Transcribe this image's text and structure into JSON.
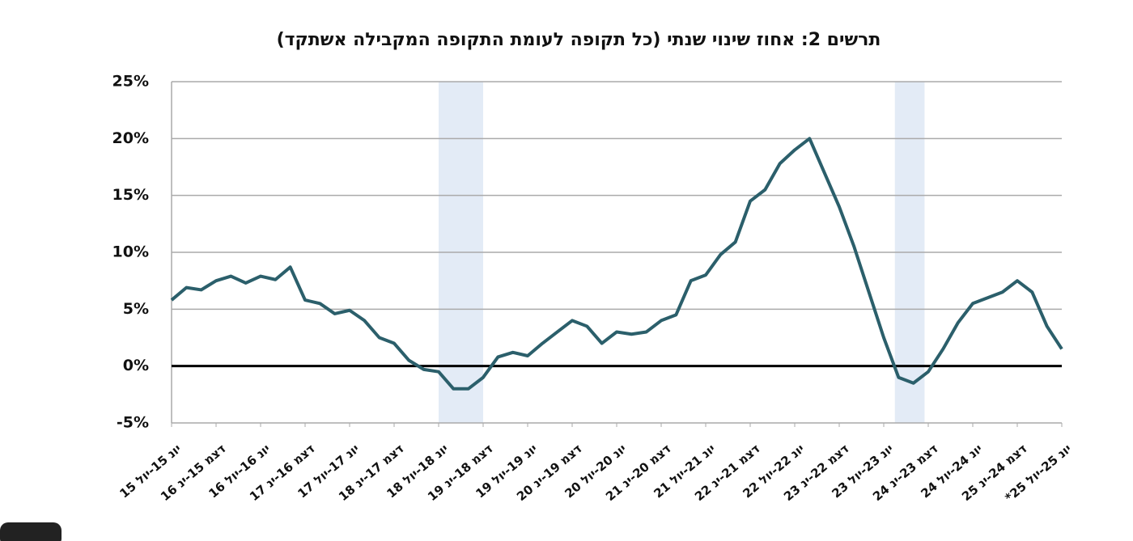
{
  "chart_data": {
    "type": "line",
    "title": "תרשים 2: אחוז שינוי שנתי (כל תקופה לעומת התקופה המקבילה אשתקד)",
    "x": [
      0,
      2,
      4,
      6,
      8,
      10,
      12,
      14,
      16,
      18,
      20,
      22,
      24,
      26,
      28,
      30,
      32,
      34,
      36,
      38,
      40,
      42,
      44,
      46,
      48,
      50,
      52,
      54,
      56,
      58,
      60,
      62,
      64,
      66,
      68,
      70,
      72,
      74,
      76,
      78,
      80,
      82,
      84,
      86,
      88,
      90,
      92,
      94,
      96,
      98,
      100,
      102,
      104,
      106,
      108,
      110,
      112,
      114,
      116,
      118,
      120
    ],
    "series": [
      {
        "name": "שינוי שנתי",
        "color": "#2b5f6b",
        "values": [
          5.8,
          6.9,
          6.7,
          7.5,
          7.9,
          7.3,
          7.9,
          7.6,
          8.7,
          5.8,
          5.5,
          4.6,
          4.9,
          4.0,
          2.5,
          2.0,
          0.5,
          -0.3,
          -0.5,
          -2.0,
          -2.0,
          -1.0,
          0.8,
          1.2,
          0.9,
          2.0,
          3.0,
          4.0,
          3.5,
          2.0,
          3.0,
          2.8,
          3.0,
          4.0,
          4.5,
          7.5,
          8.0,
          9.8,
          10.9,
          14.5,
          15.5,
          17.8,
          19.0,
          20.0,
          17.0,
          14.0,
          10.5,
          6.5,
          2.5,
          -1.0,
          -1.5,
          -0.5,
          1.5,
          3.8,
          5.5,
          6.0,
          6.5,
          7.5,
          6.5,
          3.5,
          1.5
        ]
      }
    ],
    "bands": [
      [
        36,
        42
      ],
      [
        97.5,
        101.5
      ]
    ],
    "band_color": "#e3ebf6",
    "xlim": [
      0,
      120
    ],
    "xticks": [
      {
        "value": 0,
        "label": "יונ 15-יול 15"
      },
      {
        "value": 6,
        "label": "דצמ 15-ינ 16"
      },
      {
        "value": 12,
        "label": "יונ 16-יול 16"
      },
      {
        "value": 18,
        "label": "דצמ 16-ינ 17"
      },
      {
        "value": 24,
        "label": "יונ 17-יול 17"
      },
      {
        "value": 30,
        "label": "דצמ 17-ינ 18"
      },
      {
        "value": 36,
        "label": "יונ 18-יול 18"
      },
      {
        "value": 42,
        "label": "דצמ 18-ינ 19"
      },
      {
        "value": 48,
        "label": "יונ 19-יול 19"
      },
      {
        "value": 54,
        "label": "דצמ 19-ינ 20"
      },
      {
        "value": 60,
        "label": "יונ 20-יול 20"
      },
      {
        "value": 66,
        "label": "דצמ 20-ינ 21"
      },
      {
        "value": 72,
        "label": "יונ 21-יול 21"
      },
      {
        "value": 78,
        "label": "דצמ 21-ינ 22"
      },
      {
        "value": 84,
        "label": "יונ 22-יול 22"
      },
      {
        "value": 90,
        "label": "דצמ 22-ינ 23"
      },
      {
        "value": 96,
        "label": "יונ 23-יול 23"
      },
      {
        "value": 102,
        "label": "דצמ 23-ינ 24"
      },
      {
        "value": 108,
        "label": "יונ 24-יול 24"
      },
      {
        "value": 114,
        "label": "דצמ 24-ינ 25"
      },
      {
        "value": 120,
        "label": "יונ 25-יול 25*"
      }
    ],
    "ylim": [
      -5,
      25
    ],
    "yticks": [
      {
        "value": -5,
        "label": "-5%"
      },
      {
        "value": 0,
        "label": "0%"
      },
      {
        "value": 5,
        "label": "5%"
      },
      {
        "value": 10,
        "label": "10%"
      },
      {
        "value": 15,
        "label": "15%"
      },
      {
        "value": 20,
        "label": "20%"
      },
      {
        "value": 25,
        "label": "25%"
      }
    ],
    "grid": true
  }
}
